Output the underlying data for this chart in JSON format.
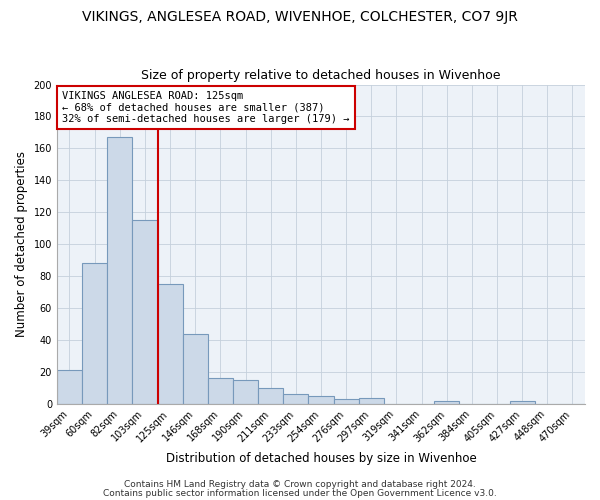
{
  "title": "VIKINGS, ANGLESEA ROAD, WIVENHOE, COLCHESTER, CO7 9JR",
  "subtitle": "Size of property relative to detached houses in Wivenhoe",
  "xlabel": "Distribution of detached houses by size in Wivenhoe",
  "ylabel": "Number of detached properties",
  "bar_labels": [
    "39sqm",
    "60sqm",
    "82sqm",
    "103sqm",
    "125sqm",
    "146sqm",
    "168sqm",
    "190sqm",
    "211sqm",
    "233sqm",
    "254sqm",
    "276sqm",
    "297sqm",
    "319sqm",
    "341sqm",
    "362sqm",
    "384sqm",
    "405sqm",
    "427sqm",
    "448sqm",
    "470sqm"
  ],
  "bar_values": [
    21,
    88,
    167,
    115,
    75,
    44,
    16,
    15,
    10,
    6,
    5,
    3,
    4,
    0,
    0,
    2,
    0,
    0,
    2,
    0,
    0
  ],
  "bar_color": "#ccd9e8",
  "bar_edge_color": "#7799bb",
  "vline_color": "#cc0000",
  "annotation_title": "VIKINGS ANGLESEA ROAD: 125sqm",
  "annotation_line1": "← 68% of detached houses are smaller (387)",
  "annotation_line2": "32% of semi-detached houses are larger (179) →",
  "annotation_box_color": "#ffffff",
  "annotation_box_edge": "#cc0000",
  "ylim": [
    0,
    200
  ],
  "yticks": [
    0,
    20,
    40,
    60,
    80,
    100,
    120,
    140,
    160,
    180,
    200
  ],
  "footer1": "Contains HM Land Registry data © Crown copyright and database right 2024.",
  "footer2": "Contains public sector information licensed under the Open Government Licence v3.0.",
  "bg_color": "#ffffff",
  "plot_bg_color": "#edf2f8",
  "grid_color": "#c5d0dc",
  "title_fontsize": 10,
  "subtitle_fontsize": 9,
  "axis_label_fontsize": 8.5,
  "tick_fontsize": 7,
  "annotation_fontsize": 7.5,
  "footer_fontsize": 6.5
}
